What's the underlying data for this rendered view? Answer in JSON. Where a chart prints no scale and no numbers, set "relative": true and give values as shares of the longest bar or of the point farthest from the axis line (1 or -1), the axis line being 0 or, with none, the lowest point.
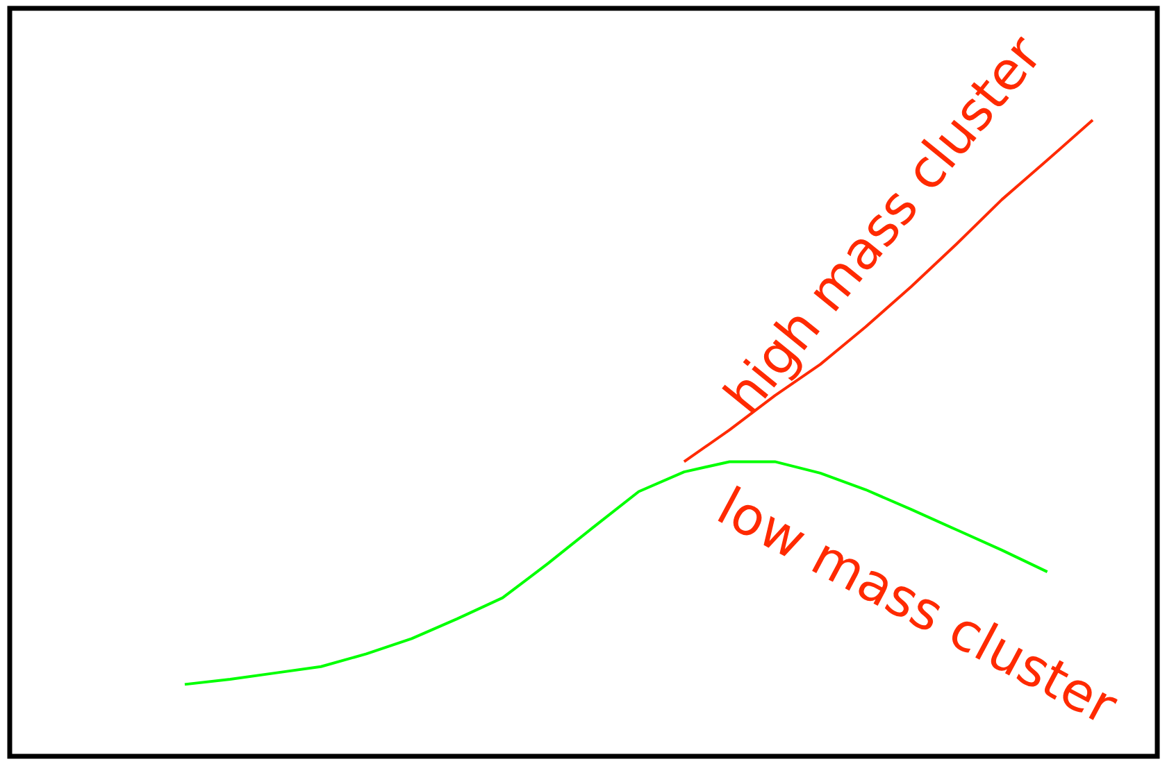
{
  "chart_data": {
    "type": "line",
    "relative": true,
    "categories": [
      null,
      null,
      null,
      null,
      null,
      null,
      null,
      null,
      null,
      null,
      null,
      null,
      null,
      null,
      null,
      null,
      null,
      null,
      null,
      null,
      null
    ],
    "series": [
      {
        "name": "high mass cluster",
        "color": "#ff2a00",
        "values": [
          null,
          null,
          null,
          null,
          null,
          null,
          null,
          null,
          null,
          null,
          null,
          0.463,
          0.513,
          0.567,
          0.616,
          0.675,
          0.738,
          0.805,
          0.875,
          0.937,
          1.0
        ]
      },
      {
        "name": "low mass cluster",
        "color": "#00ff00",
        "values": [
          0.113,
          0.121,
          0.131,
          0.141,
          0.161,
          0.185,
          0.216,
          0.249,
          0.303,
          0.36,
          0.416,
          0.447,
          0.463,
          0.463,
          0.445,
          0.419,
          0.388,
          0.356,
          0.324,
          0.29,
          null
        ]
      }
    ]
  }
}
